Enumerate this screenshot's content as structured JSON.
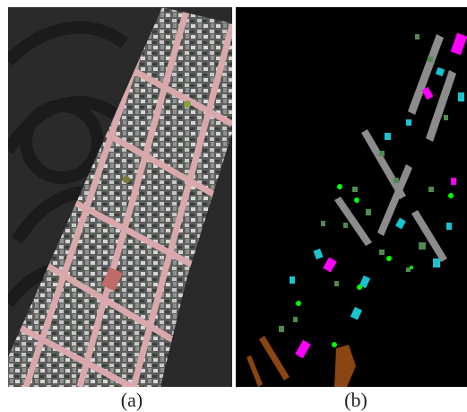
{
  "figure": {
    "captions": {
      "a": "(a)",
      "b": "(b)"
    }
  },
  "colors": {
    "image_background": "#2a2a2a",
    "image_strip_base": "#6b6b6b",
    "road": "#d9a8ad",
    "roof_light": "#c8c8c8",
    "roof_dark": "#3a3f3a",
    "map_background": "#000000",
    "class_gray": "#8c8c8c",
    "class_green": "#4f8a4f",
    "class_cyan": "#19c4d0",
    "class_magenta": "#ff00ff",
    "class_lime": "#00ff00",
    "class_brown": "#8b4513"
  }
}
